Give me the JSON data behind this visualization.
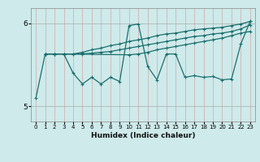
{
  "xlabel": "Humidex (Indice chaleur)",
  "bg_color": "#ceeaea",
  "line_color": "#1a6e6e",
  "xlim": [
    -0.5,
    23.5
  ],
  "ylim": [
    4.82,
    6.18
  ],
  "yticks": [
    5.0,
    6.0
  ],
  "ytick_labels": [
    "5",
    "6"
  ],
  "xticks": [
    0,
    1,
    2,
    3,
    4,
    5,
    6,
    7,
    8,
    9,
    10,
    11,
    12,
    13,
    14,
    15,
    16,
    17,
    18,
    19,
    20,
    21,
    22,
    23
  ],
  "series": [
    {
      "x": [
        1,
        2,
        3,
        4,
        5,
        6,
        7,
        8,
        9,
        10,
        11,
        12,
        13,
        14,
        15,
        16,
        17,
        18,
        19,
        20,
        21,
        22,
        23
      ],
      "y": [
        5.63,
        5.63,
        5.63,
        5.63,
        5.65,
        5.68,
        5.7,
        5.73,
        5.75,
        5.78,
        5.8,
        5.82,
        5.85,
        5.87,
        5.88,
        5.9,
        5.92,
        5.93,
        5.94,
        5.95,
        5.97,
        5.99,
        6.02
      ]
    },
    {
      "x": [
        1,
        2,
        3,
        4,
        5,
        6,
        7,
        8,
        9,
        10,
        11,
        12,
        13,
        14,
        15,
        16,
        17,
        18,
        19,
        20,
        21,
        22,
        23
      ],
      "y": [
        5.63,
        5.63,
        5.63,
        5.63,
        5.63,
        5.64,
        5.65,
        5.66,
        5.68,
        5.7,
        5.72,
        5.74,
        5.76,
        5.78,
        5.8,
        5.82,
        5.84,
        5.85,
        5.87,
        5.88,
        5.9,
        5.93,
        5.98
      ]
    },
    {
      "x": [
        1,
        2,
        3,
        10,
        11,
        12,
        13,
        14,
        15,
        16,
        17,
        18,
        19,
        20,
        21,
        22,
        23
      ],
      "y": [
        5.63,
        5.63,
        5.63,
        5.62,
        5.63,
        5.65,
        5.68,
        5.7,
        5.72,
        5.74,
        5.76,
        5.78,
        5.8,
        5.82,
        5.85,
        5.88,
        5.9
      ]
    },
    {
      "x": [
        0,
        1,
        2,
        3,
        4,
        5,
        6,
        7,
        8,
        9,
        10,
        11,
        12,
        13,
        14,
        15,
        16,
        17,
        18,
        19,
        20,
        21,
        22,
        23
      ],
      "y": [
        5.1,
        5.63,
        5.63,
        5.63,
        5.4,
        5.27,
        5.35,
        5.27,
        5.35,
        5.3,
        5.97,
        5.99,
        5.48,
        5.32,
        5.63,
        5.63,
        5.35,
        5.37,
        5.35,
        5.36,
        5.32,
        5.33,
        5.75,
        6.02
      ]
    }
  ]
}
